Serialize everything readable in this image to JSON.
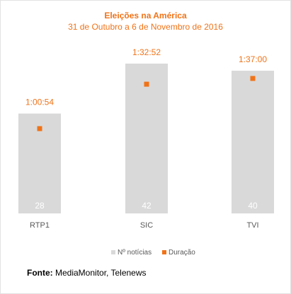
{
  "chart_data": {
    "type": "bar",
    "title": "Eleições na América",
    "subtitle": "31 de Outubro a 6 de Novembro de 2016",
    "categories": [
      "RTP1",
      "SIC",
      "TVI"
    ],
    "series": [
      {
        "name": "Nº notícias",
        "kind": "bar",
        "axis": "primary",
        "values": [
          28,
          42,
          40
        ],
        "labels": [
          "28",
          "42",
          "40"
        ]
      },
      {
        "name": "Duração",
        "kind": "marker",
        "axis": "secondary",
        "values_seconds": [
          3654,
          5572,
          5820
        ],
        "labels": [
          "1:00:54",
          "1:32:52",
          "1:37:00"
        ]
      }
    ],
    "grid": false,
    "legend_position": "bottom-center",
    "colors": {
      "bar": "#d9d9d9",
      "marker": "#f07318",
      "title": "#f07318",
      "axis_text": "#595959",
      "bar_label": "#ffffff"
    }
  },
  "source": {
    "label": "Fonte:",
    "text": "MediaMonitor, Telenews"
  }
}
